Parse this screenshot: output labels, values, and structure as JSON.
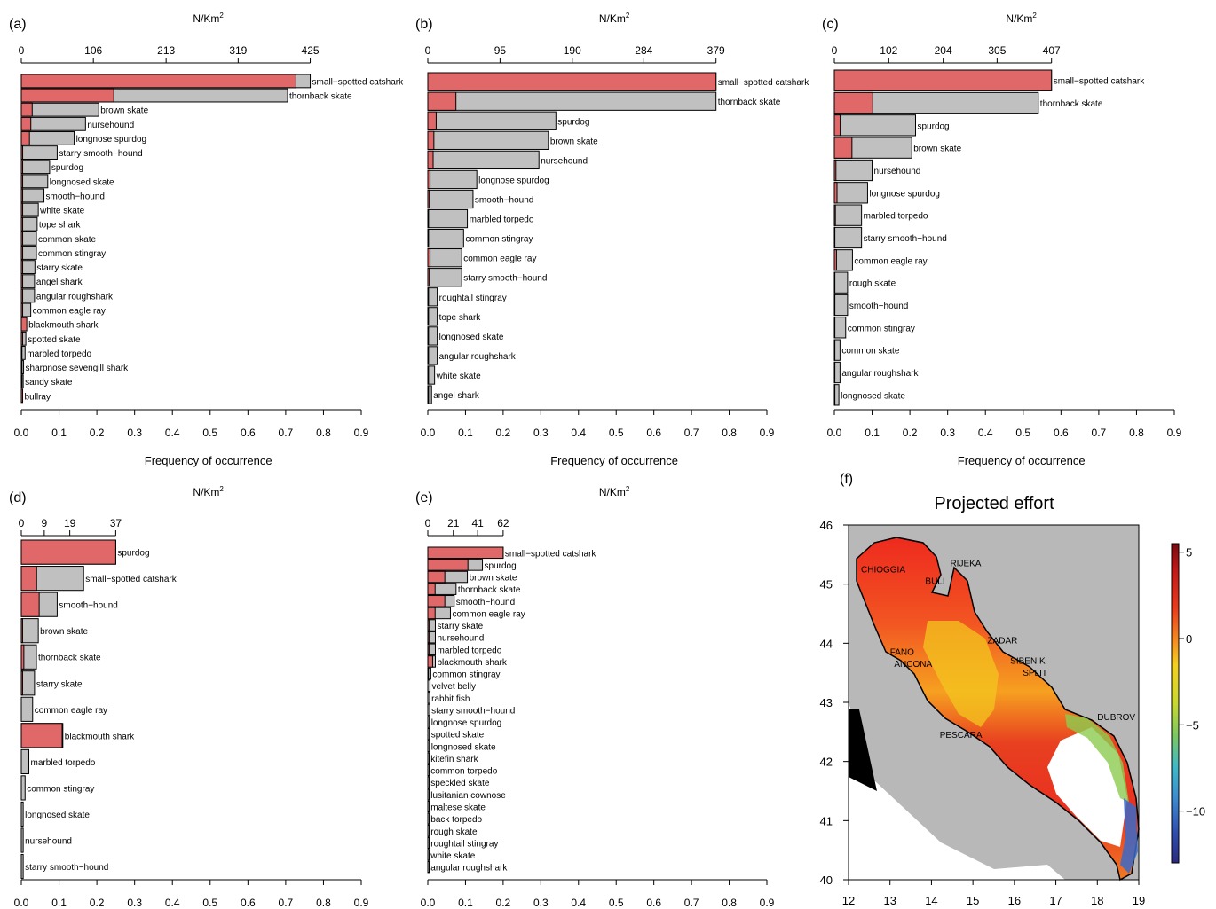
{
  "colors": {
    "bar_gray": "#c0c0c0",
    "bar_red": "#e06868",
    "map_land": "#b8b8b8",
    "outline": "#000000"
  },
  "chart_data": [
    {
      "panel": "(a)",
      "type": "bar",
      "orientation": "horizontal",
      "xlabel": "Frequency of occurrence",
      "toplabel": "N/Km",
      "toplabel_sup": "2",
      "xlim": [
        0,
        0.9
      ],
      "xticks": [
        "0.0",
        "0.1",
        "0.2",
        "0.3",
        "0.4",
        "0.5",
        "0.6",
        "0.7",
        "0.8",
        "0.9"
      ],
      "top_range": [
        0,
        425
      ],
      "top_ticks": [
        "0",
        "106",
        "213",
        "319",
        "425"
      ],
      "categories": [
        "small−spotted catshark",
        "thornback skate",
        "brown skate",
        "nursehound",
        "longnose spurdog",
        "starry smooth−hound",
        "spurdog",
        "longnosed skate",
        "smooth−hound",
        "white skate",
        "tope shark",
        "common skate",
        "common stingray",
        "starry skate",
        "angel shark",
        "angular roughshark",
        "common eagle ray",
        "blackmouth shark",
        "spotted skate",
        "marbled torpedo",
        "sharpnose sevengill shark",
        "sandy skate",
        "bullray"
      ],
      "frequency": [
        0.765,
        0.705,
        0.205,
        0.17,
        0.14,
        0.095,
        0.075,
        0.07,
        0.06,
        0.045,
        0.042,
        0.04,
        0.04,
        0.036,
        0.035,
        0.035,
        0.025,
        0.012,
        0.012,
        0.01,
        0.006,
        0.005,
        0.003
      ],
      "density": [
        404,
        136,
        16,
        14,
        12,
        2,
        2,
        2,
        2,
        2,
        2,
        2,
        2,
        2,
        2,
        2,
        2,
        8,
        2,
        1,
        1,
        1,
        2
      ]
    },
    {
      "panel": "(b)",
      "type": "bar",
      "orientation": "horizontal",
      "xlabel": "Frequency of occurrence",
      "toplabel": "N/Km",
      "toplabel_sup": "2",
      "xlim": [
        0,
        0.9
      ],
      "xticks": [
        "0.0",
        "0.1",
        "0.2",
        "0.3",
        "0.4",
        "0.5",
        "0.6",
        "0.7",
        "0.8",
        "0.9"
      ],
      "top_range": [
        0,
        379
      ],
      "top_ticks": [
        "0",
        "95",
        "190",
        "284",
        "379"
      ],
      "categories": [
        "small−spotted catshark",
        "thornback skate",
        "spurdog",
        "brown skate",
        "nursehound",
        "longnose spurdog",
        "smooth−hound",
        "marbled torpedo",
        "common stingray",
        "common eagle ray",
        "starry smooth−hound",
        "roughtail stingray",
        "tope shark",
        "longnosed skate",
        "angular roughshark",
        "white skate",
        "angel shark"
      ],
      "frequency": [
        0.765,
        0.765,
        0.34,
        0.32,
        0.295,
        0.13,
        0.12,
        0.105,
        0.095,
        0.09,
        0.09,
        0.025,
        0.025,
        0.025,
        0.025,
        0.018,
        0.01
      ],
      "density": [
        379,
        37,
        11,
        8,
        7,
        3,
        2,
        1,
        1,
        3,
        2,
        1,
        1,
        1,
        1,
        1,
        1
      ]
    },
    {
      "panel": "(c)",
      "type": "bar",
      "orientation": "horizontal",
      "xlabel": "Frequency of occurrence",
      "toplabel": "N/Km",
      "toplabel_sup": "2",
      "xlim": [
        0,
        0.9
      ],
      "xticks": [
        "0.0",
        "0.1",
        "0.2",
        "0.3",
        "0.4",
        "0.5",
        "0.6",
        "0.7",
        "0.8",
        "0.9"
      ],
      "top_range": [
        0,
        407
      ],
      "top_ticks": [
        "0",
        "102",
        "204",
        "305",
        "407"
      ],
      "categories": [
        "small−spotted catshark",
        "thornback skate",
        "spurdog",
        "brown skate",
        "nursehound",
        "longnose spurdog",
        "marbled torpedo",
        "starry smooth−hound",
        "common eagle ray",
        "rough skate",
        "smooth−hound",
        "common stingray",
        "common skate",
        "angular roughshark",
        "longnosed skate"
      ],
      "frequency": [
        0.575,
        0.54,
        0.215,
        0.205,
        0.1,
        0.088,
        0.072,
        0.072,
        0.048,
        0.035,
        0.035,
        0.03,
        0.015,
        0.015,
        0.012
      ],
      "density": [
        407,
        72,
        11,
        33,
        3,
        5,
        2,
        1,
        4,
        1,
        1,
        1,
        1,
        1,
        1
      ]
    },
    {
      "panel": "(d)",
      "type": "bar",
      "orientation": "horizontal",
      "xlabel": "",
      "toplabel": "N/Km",
      "toplabel_sup": "2",
      "xlim": [
        0,
        0.9
      ],
      "xticks": [
        "0.0",
        "0.1",
        "0.2",
        "0.3",
        "0.4",
        "0.5",
        "0.6",
        "0.7",
        "0.8",
        "0.9"
      ],
      "top_range": [
        0,
        37
      ],
      "top_ticks": [
        "0",
        "9",
        "19",
        "37"
      ],
      "categories": [
        "spurdog",
        "small−spotted catshark",
        "smooth−hound",
        "brown skate",
        "thornback skate",
        "starry skate",
        "common eagle ray",
        "blackmouth shark",
        "marbled torpedo",
        "common stingray",
        "longnosed skate",
        "nursehound",
        "starry smooth−hound"
      ],
      "frequency": [
        0.25,
        0.165,
        0.095,
        0.045,
        0.04,
        0.035,
        0.03,
        0.11,
        0.02,
        0.01,
        0.005,
        0.005,
        0.005
      ],
      "density": [
        37,
        6,
        7,
        0.5,
        1,
        0.5,
        0.2,
        16,
        0.2,
        0.1,
        0.1,
        0.1,
        0.1
      ]
    },
    {
      "panel": "(e)",
      "type": "bar",
      "orientation": "horizontal",
      "xlabel": "",
      "toplabel": "N/Km",
      "toplabel_sup": "2",
      "xlim": [
        0,
        0.9
      ],
      "xticks": [
        "0.0",
        "0.1",
        "0.2",
        "0.3",
        "0.4",
        "0.5",
        "0.6",
        "0.7",
        "0.8",
        "0.9"
      ],
      "top_range": [
        0,
        62
      ],
      "top_ticks": [
        "0",
        "21",
        "41",
        "62"
      ],
      "categories": [
        "small−spotted catshark",
        "spurdog",
        "brown skate",
        "thornback skate",
        "smooth−hound",
        "common eagle ray",
        "starry skate",
        "nursehound",
        "marbled torpedo",
        "blackmouth shark",
        "common stingray",
        "velvet belly",
        "rabbit fish",
        "starry smooth−hound",
        "longnose spurdog",
        "spotted skate",
        "longnosed skate",
        "kitefin shark",
        "common torpedo",
        "speckled skate",
        "lusitanian cownose",
        "maltese skate",
        "back torpedo",
        "rough skate",
        "roughtail stingray",
        "white skate",
        "angular roughshark"
      ],
      "frequency": [
        0.2,
        0.145,
        0.105,
        0.075,
        0.07,
        0.06,
        0.02,
        0.02,
        0.02,
        0.02,
        0.008,
        0.006,
        0.005,
        0.005,
        0.004,
        0.004,
        0.004,
        0.003,
        0.003,
        0.003,
        0.003,
        0.003,
        0.003,
        0.003,
        0.003,
        0.003,
        0.003
      ],
      "density": [
        62,
        33,
        14,
        6,
        14,
        6,
        1,
        1,
        1,
        4,
        0.5,
        0.3,
        0.3,
        0.3,
        0.3,
        0.3,
        0.3,
        0.2,
        0.2,
        0.2,
        0.2,
        0.2,
        0.2,
        0.2,
        0.2,
        0.2,
        0.2
      ]
    }
  ],
  "map": {
    "panel": "(f)",
    "title": "Projected effort",
    "xticks": [
      "12",
      "13",
      "14",
      "15",
      "16",
      "17",
      "18",
      "19"
    ],
    "yticks": [
      "40",
      "41",
      "42",
      "43",
      "44",
      "45",
      "46"
    ],
    "xlim": [
      12,
      19
    ],
    "ylim": [
      40,
      46
    ],
    "colorbar_range": [
      -13,
      5.5
    ],
    "colorbar_ticks": [
      "5",
      "0",
      "−5",
      "−10"
    ],
    "colorbar_values": [
      5,
      0,
      -5,
      -10
    ],
    "places": [
      {
        "name": "CHIOGGIA",
        "lon": 12.3,
        "lat": 45.2
      },
      {
        "name": "RIJEKA",
        "lon": 14.45,
        "lat": 45.3
      },
      {
        "name": "BULI",
        "lon": 13.85,
        "lat": 45.0
      },
      {
        "name": "ZADAR",
        "lon": 15.35,
        "lat": 44.0
      },
      {
        "name": "FANO",
        "lon": 13.0,
        "lat": 43.8
      },
      {
        "name": "ANCONA",
        "lon": 13.1,
        "lat": 43.6
      },
      {
        "name": "SIBENIK",
        "lon": 15.9,
        "lat": 43.65
      },
      {
        "name": "SPLIT",
        "lon": 16.2,
        "lat": 43.45
      },
      {
        "name": "PESCARA",
        "lon": 14.2,
        "lat": 42.4
      },
      {
        "name": "DUBROV",
        "lon": 18.0,
        "lat": 42.7
      }
    ]
  }
}
